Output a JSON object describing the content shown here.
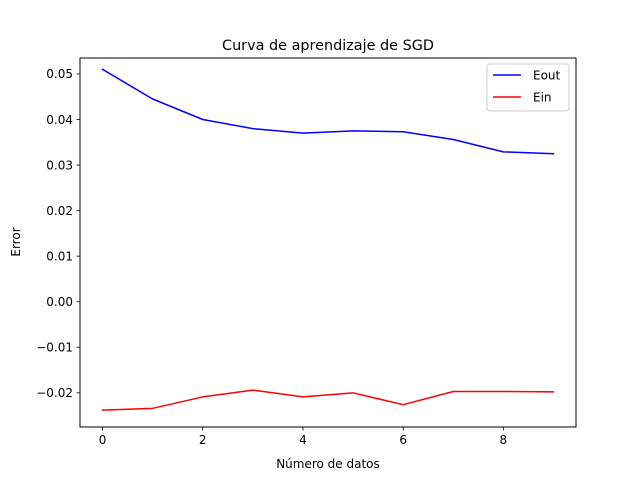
{
  "chart_data": {
    "type": "line",
    "title": "Curva de aprendizaje de SGD",
    "xlabel": "Número de datos",
    "ylabel": "Error",
    "xlim": [
      -0.45,
      9.45
    ],
    "ylim": [
      -0.0275,
      0.0535
    ],
    "x_ticks": [
      0,
      2,
      4,
      6,
      8
    ],
    "x_tick_labels": [
      "0",
      "2",
      "4",
      "6",
      "8"
    ],
    "y_ticks": [
      -0.02,
      -0.01,
      0.0,
      0.01,
      0.02,
      0.03,
      0.04,
      0.05
    ],
    "y_tick_labels": [
      "−0.02",
      "−0.01",
      "0.00",
      "0.01",
      "0.02",
      "0.03",
      "0.04",
      "0.05"
    ],
    "grid": false,
    "legend_position": "top-right",
    "x": [
      0,
      1,
      2,
      3,
      4,
      5,
      6,
      7,
      8,
      9
    ],
    "series": [
      {
        "name": "Eout",
        "color": "#0000ff",
        "values": [
          0.051,
          0.0445,
          0.04,
          0.038,
          0.037,
          0.0375,
          0.0373,
          0.0356,
          0.0329,
          0.0325
        ]
      },
      {
        "name": "Ein",
        "color": "#ff0000",
        "values": [
          -0.0238,
          -0.0234,
          -0.0209,
          -0.0194,
          -0.0209,
          -0.02,
          -0.0226,
          -0.0197,
          -0.0197,
          -0.0198
        ]
      }
    ]
  }
}
